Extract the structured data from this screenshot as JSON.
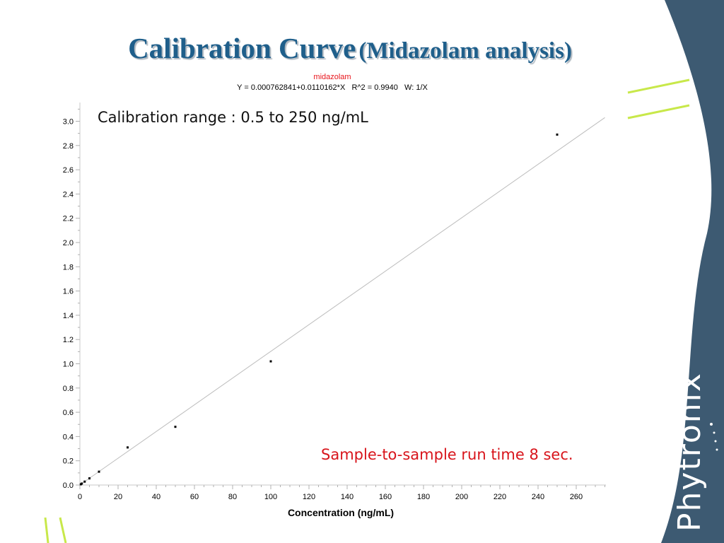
{
  "slide": {
    "title_main": "Calibration Curve",
    "title_sub": "(Midazolam analysis)",
    "range_note": "Calibration range : 0.5 to 250 ng/mL",
    "runtime_note": "Sample-to-sample run time 8 sec.",
    "brand": "Phytronix",
    "colors": {
      "title": "#1f5f8b",
      "panel": "#3d5a72",
      "accent_lines": "#c8e84a",
      "series_label": "#e8141b",
      "runtime_note": "#d8141b"
    }
  },
  "chart_data": {
    "type": "scatter",
    "series_label": "midazolam",
    "equation": "Y = 0.000762841+0.0110162*X   R^2 = 0.9940   W: 1/X",
    "xlabel": "Concentration (ng/mL)",
    "ylabel": "",
    "xlim": [
      0,
      275
    ],
    "ylim": [
      0,
      3.1
    ],
    "x_ticks": [
      0,
      20,
      40,
      60,
      80,
      100,
      120,
      140,
      160,
      180,
      200,
      220,
      240,
      260
    ],
    "y_ticks": [
      0.0,
      0.2,
      0.4,
      0.6,
      0.8,
      1.0,
      1.2,
      1.4,
      1.6,
      1.8,
      2.0,
      2.2,
      2.4,
      2.6,
      2.8,
      3.0
    ],
    "series": [
      {
        "x": [
          0.5,
          1,
          2.5,
          5,
          10,
          25,
          50,
          100,
          250
        ],
        "y": [
          0.006,
          0.012,
          0.028,
          0.055,
          0.11,
          0.31,
          0.48,
          1.02,
          2.89
        ]
      }
    ],
    "fit_line": {
      "intercept": 0.000762841,
      "slope": 0.0110162
    },
    "grid": false,
    "legend": "none"
  }
}
